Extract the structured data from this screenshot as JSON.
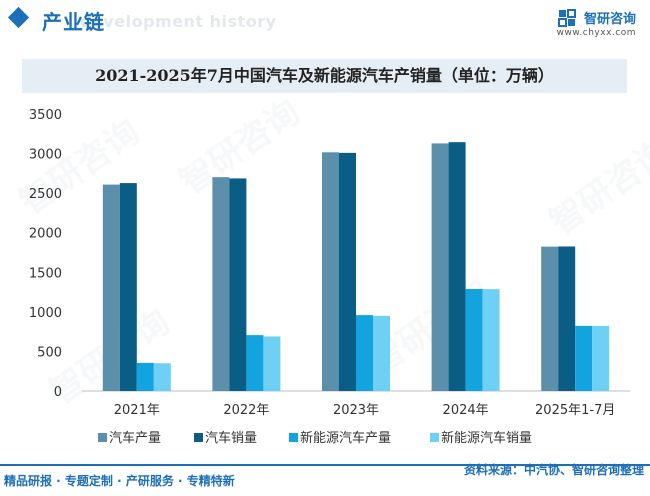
{
  "header": {
    "section_title": "产业链",
    "section_subtitle": "development history",
    "brand_name": "智研咨询",
    "brand_url": "www.chyxx.com"
  },
  "watermark_text": "智研咨询",
  "chart_data": {
    "type": "bar",
    "title": "2021-2025年7月中国汽车及新能源汽车产销量（单位：万辆）",
    "categories": [
      "2021年",
      "2022年",
      "2023年",
      "2024年",
      "2025年1-7月"
    ],
    "series": [
      {
        "name": "汽车产量",
        "color": "#5b8fab",
        "values": [
          2608,
          2702,
          3016,
          3128,
          1824
        ]
      },
      {
        "name": "汽车销量",
        "color": "#0a5e86",
        "values": [
          2627,
          2686,
          3009,
          3144,
          1826
        ]
      },
      {
        "name": "新能源汽车产量",
        "color": "#13a4df",
        "values": [
          355,
          706,
          959,
          1289,
          823
        ]
      },
      {
        "name": "新能源汽车销量",
        "color": "#6ed0f5",
        "values": [
          351,
          689,
          950,
          1287,
          822
        ]
      }
    ],
    "ylim": [
      0,
      3500
    ],
    "yticks": [
      0,
      500,
      1000,
      1500,
      2000,
      2500,
      3000,
      3500
    ],
    "xlabel": "",
    "ylabel": "",
    "legend_position": "bottom"
  },
  "footer": {
    "left": "精品研报 · 专题定制 · 产研服务 · 专精特新",
    "right": "资料来源：中汽协、智研咨询整理"
  }
}
